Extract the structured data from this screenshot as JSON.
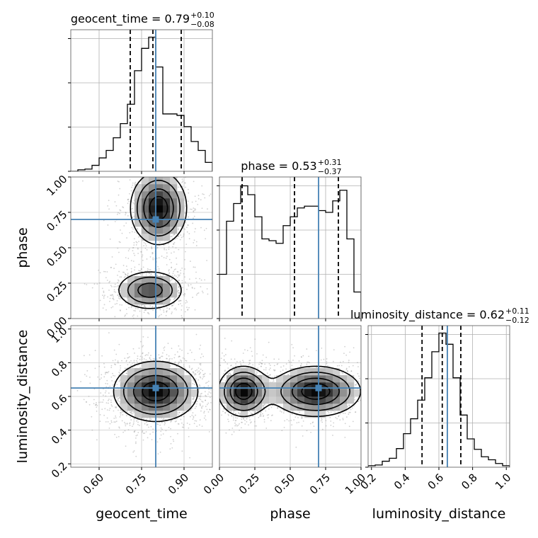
{
  "chart_data": {
    "type": "corner",
    "parameters": [
      "geocent_time",
      "phase",
      "luminosity_distance"
    ],
    "truths": [
      0.8,
      0.7,
      0.65
    ],
    "truth_color": "#4682b4",
    "line_color": "#000000",
    "grid": true,
    "axis_labels": {
      "x": [
        "geocent_time",
        "phase",
        "luminosity_distance"
      ],
      "y": [
        "",
        "phase",
        "luminosity_distance"
      ]
    },
    "tick_labels": {
      "geocent_time": [
        "0.60",
        "0.75",
        "0.90"
      ],
      "phase": [
        "0.00",
        "0.25",
        "0.50",
        "0.75",
        "1.00"
      ],
      "luminosity_distance": [
        "0.2",
        "0.4",
        "0.6",
        "0.8",
        "1.0"
      ]
    },
    "ranges": {
      "geocent_time": [
        0.5,
        1.0
      ],
      "phase": [
        0.0,
        1.0
      ],
      "luminosity_distance": [
        0.18,
        1.02
      ]
    },
    "titles": [
      {
        "name": "geocent_time",
        "median": "0.79",
        "plus": "+0.10",
        "minus": "−0.08"
      },
      {
        "name": "phase",
        "median": "0.53",
        "plus": "+0.31",
        "minus": "−0.37"
      },
      {
        "name": "luminosity_distance",
        "median": "0.62",
        "plus": "+0.11",
        "minus": "−0.12"
      }
    ],
    "marginals": [
      {
        "parameter": "geocent_time",
        "bin_edges": [
          0.5,
          0.525,
          0.55,
          0.575,
          0.6,
          0.625,
          0.65,
          0.675,
          0.7,
          0.725,
          0.75,
          0.775,
          0.8,
          0.825,
          0.85,
          0.875,
          0.9,
          0.925,
          0.95,
          0.975,
          1.0
        ],
        "counts": [
          0,
          2,
          3,
          8,
          18,
          28,
          45,
          64,
          90,
          135,
          165,
          180,
          140,
          77,
          77,
          75,
          60,
          40,
          28,
          12
        ],
        "quantiles": [
          0.71,
          0.79,
          0.89
        ],
        "ylim": [
          0,
          190
        ]
      },
      {
        "parameter": "phase",
        "bin_edges": [
          0.0,
          0.05,
          0.1,
          0.15,
          0.2,
          0.25,
          0.3,
          0.35,
          0.4,
          0.45,
          0.5,
          0.55,
          0.6,
          0.65,
          0.7,
          0.75,
          0.8,
          0.85,
          0.9,
          0.95,
          1.0
        ],
        "counts": [
          50,
          110,
          130,
          150,
          140,
          115,
          90,
          88,
          85,
          105,
          115,
          125,
          127,
          127,
          122,
          120,
          133,
          145,
          90,
          30
        ],
        "quantiles": [
          0.16,
          0.53,
          0.84
        ],
        "ylim": [
          0,
          160
        ]
      },
      {
        "parameter": "luminosity_distance",
        "bin_edges": [
          0.18,
          0.222,
          0.264,
          0.306,
          0.348,
          0.39,
          0.432,
          0.474,
          0.516,
          0.558,
          0.6,
          0.642,
          0.684,
          0.726,
          0.768,
          0.81,
          0.852,
          0.894,
          0.936,
          0.978,
          1.02
        ],
        "counts": [
          2,
          3,
          8,
          12,
          25,
          45,
          65,
          90,
          120,
          155,
          180,
          165,
          120,
          70,
          38,
          24,
          14,
          10,
          5,
          2
        ],
        "quantiles": [
          0.5,
          0.62,
          0.73
        ],
        "ylim": [
          0,
          190
        ]
      }
    ],
    "joints": [
      {
        "x": "geocent_time",
        "y": "phase",
        "modes": [
          {
            "mx": 0.81,
            "my": 0.78,
            "sx": 0.05,
            "sy": 0.13,
            "w": 1.0,
            "rot": 0.25
          },
          {
            "mx": 0.78,
            "my": 0.2,
            "sx": 0.06,
            "sy": 0.07,
            "w": 0.75,
            "rot": 0.2
          }
        ]
      },
      {
        "x": "geocent_time",
        "y": "luminosity_distance",
        "modes": [
          {
            "mx": 0.8,
            "my": 0.63,
            "sx": 0.075,
            "sy": 0.09,
            "w": 1.0,
            "rot": 0.1
          }
        ]
      },
      {
        "x": "phase",
        "y": "luminosity_distance",
        "modes": [
          {
            "mx": 0.17,
            "my": 0.63,
            "sx": 0.09,
            "sy": 0.075,
            "w": 1.0,
            "rot": 0.0
          },
          {
            "mx": 0.68,
            "my": 0.63,
            "sx": 0.16,
            "sy": 0.075,
            "w": 1.0,
            "rot": 0.0
          }
        ]
      }
    ]
  }
}
